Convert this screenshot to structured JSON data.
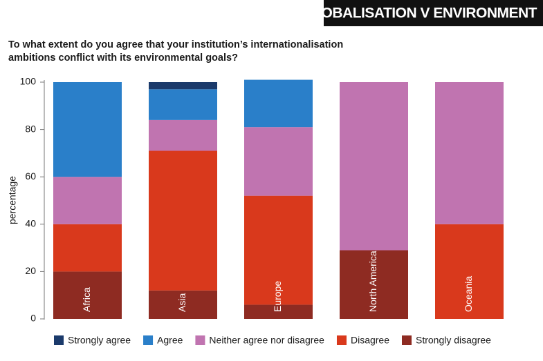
{
  "chart_data": {
    "type": "stacked_bar",
    "banner": "GLOBALISATION V ENVIRONMENT",
    "title": "To what extent do you agree that your institution’s internationalisation ambitions conflict with its environmental goals?",
    "y_label": "percentage",
    "categories": [
      "Africa",
      "Asia",
      "Europe",
      "North America",
      "Oceania"
    ],
    "series": [
      {
        "name": "Strongly disagree",
        "color": "#8e2b22",
        "values": [
          20,
          12,
          6,
          29,
          0
        ]
      },
      {
        "name": "Disagree",
        "color": "#d9391c",
        "values": [
          20,
          59,
          46,
          0,
          40
        ]
      },
      {
        "name": "Neither agree nor disagree",
        "color": "#c074b0",
        "values": [
          20,
          13,
          29,
          71,
          60
        ]
      },
      {
        "name": "Agree",
        "color": "#2a7fc9",
        "values": [
          40,
          13,
          20,
          0,
          0
        ]
      },
      {
        "name": "Strongly agree",
        "color": "#1b3a6b",
        "values": [
          0,
          3,
          0,
          0,
          0
        ]
      }
    ],
    "legend_order": [
      4,
      3,
      2,
      1,
      0
    ],
    "ylim": [
      0,
      100
    ],
    "yticks": [
      0,
      20,
      40,
      60,
      80,
      100
    ]
  }
}
